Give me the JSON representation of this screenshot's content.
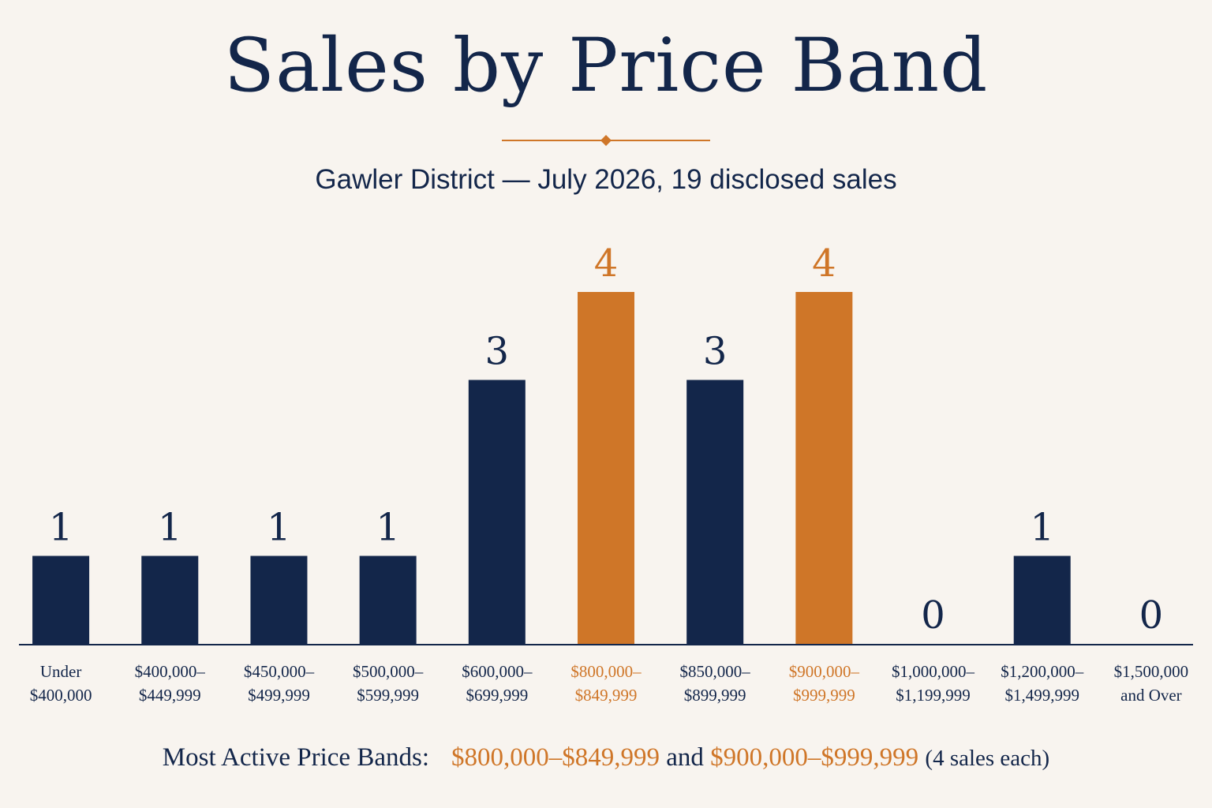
{
  "header": {
    "title": "Sales by Price Band",
    "subtitle": "Gawler District — July 2026, 19 disclosed sales"
  },
  "colors": {
    "navy": "#13264a",
    "accent": "#cf7628",
    "background": "#f8f4ef"
  },
  "footer": {
    "label": "Most Active Price Bands:",
    "band_a": "$800,000–$849,999",
    "joiner": "and",
    "band_b": "$900,000–$999,999",
    "note": "(4 sales each)"
  },
  "chart_data": {
    "type": "bar",
    "categories": [
      [
        "Under",
        "$400,000"
      ],
      [
        "$400,000–",
        "$449,999"
      ],
      [
        "$450,000–",
        "$499,999"
      ],
      [
        "$500,000–",
        "$599,999"
      ],
      [
        "$600,000–",
        "$699,999"
      ],
      [
        "$800,000–",
        "$849,999"
      ],
      [
        "$850,000–",
        "$899,999"
      ],
      [
        "$900,000–",
        "$999,999"
      ],
      [
        "$1,000,000–",
        "$1,199,999"
      ],
      [
        "$1,200,000–",
        "$1,499,999"
      ],
      [
        "$1,500,000",
        "and Over"
      ]
    ],
    "values": [
      1,
      1,
      1,
      1,
      3,
      4,
      3,
      4,
      0,
      1,
      0
    ],
    "highlighted": [
      5,
      7
    ],
    "ylim": [
      0,
      4
    ],
    "grid": false,
    "legend": "none",
    "data_labels": true
  }
}
